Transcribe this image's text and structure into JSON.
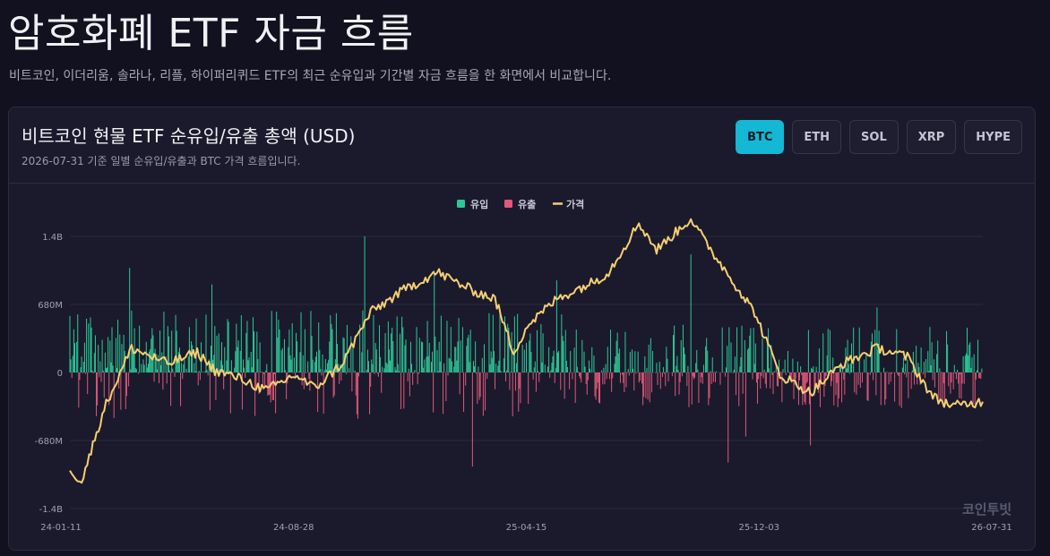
{
  "header": {
    "title": "암호화폐 ETF 자금 흐름",
    "subtitle": "비트코인, 이더리움, 솔라나, 리플, 하이퍼리퀴드 ETF의 최근 순유입과 기간별 자금 흐름을 한 화면에서 비교합니다."
  },
  "card": {
    "title": "비트코인 현물 ETF 순유입/유출 총액 (USD)",
    "subtitle": "2026-07-31 기준 일별 순유입/유출과 BTC 가격 흐름입니다.",
    "tabs": [
      {
        "label": "BTC",
        "active": true
      },
      {
        "label": "ETH",
        "active": false
      },
      {
        "label": "SOL",
        "active": false
      },
      {
        "label": "XRP",
        "active": false
      },
      {
        "label": "HYPE",
        "active": false
      }
    ],
    "watermark": "코인투빗"
  },
  "colors": {
    "inflow": "#2dc897",
    "outflow": "#e0587a",
    "price": "#f5cf73",
    "grid": "#2a2a3e",
    "axis_text": "#a0a0b0"
  },
  "chart_data": {
    "type": "bar",
    "legend": [
      "유입",
      "유출",
      "가격"
    ],
    "legend_position": "top-center",
    "y_ticks": [
      "1.4B",
      "680M",
      "0",
      "-680M",
      "-1.4B"
    ],
    "x_ticks": [
      "24-01-11",
      "24-08-28",
      "25-04-15",
      "25-12-03",
      "26-07-31"
    ],
    "ylim": [
      -1360000000,
      1360000000
    ],
    "grid": true,
    "x_range": [
      "2024-01-11",
      "2026-07-31"
    ],
    "bars_per_day": 1,
    "inflow_peaks": [
      {
        "date": "2024-03-12",
        "value": 1045000000
      },
      {
        "date": "2024-06-04",
        "value": 880000000
      },
      {
        "date": "2024-11-07",
        "value": 1360000000
      },
      {
        "date": "2025-01-17",
        "value": 1020000000
      },
      {
        "date": "2025-05-22",
        "value": 920000000
      },
      {
        "date": "2025-10-06",
        "value": 1180000000
      },
      {
        "date": "2026-04-14",
        "value": 650000000
      }
    ],
    "outflow_peaks": [
      {
        "date": "2025-02-25",
        "value": -940000000
      },
      {
        "date": "2025-11-13",
        "value": -900000000
      },
      {
        "date": "2025-12-01",
        "value": -640000000
      },
      {
        "date": "2026-02-05",
        "value": -730000000
      }
    ],
    "price_series": {
      "name": "가격",
      "x": [
        "2024-01-11",
        "2024-01-23",
        "2024-02-15",
        "2024-03-14",
        "2024-04-20",
        "2024-05-20",
        "2024-06-07",
        "2024-07-05",
        "2024-07-29",
        "2024-08-28",
        "2024-09-17",
        "2024-10-15",
        "2024-11-13",
        "2024-12-17",
        "2025-01-20",
        "2025-02-24",
        "2025-03-20",
        "2025-04-08",
        "2025-04-22",
        "2025-05-22",
        "2025-06-30",
        "2025-07-14",
        "2025-08-14",
        "2025-09-01",
        "2025-10-06",
        "2025-10-20",
        "2025-11-21",
        "2025-12-10",
        "2026-01-05",
        "2026-02-05",
        "2026-03-10",
        "2026-04-15",
        "2026-05-15",
        "2026-06-10",
        "2026-07-01",
        "2026-07-31"
      ],
      "y": [
        0.08,
        0.02,
        0.35,
        0.62,
        0.55,
        0.6,
        0.52,
        0.48,
        0.43,
        0.5,
        0.44,
        0.55,
        0.78,
        0.88,
        0.96,
        0.88,
        0.84,
        0.6,
        0.72,
        0.84,
        0.92,
        0.96,
        1.18,
        1.06,
        1.2,
        1.1,
        0.9,
        0.78,
        0.5,
        0.42,
        0.55,
        0.62,
        0.58,
        0.4,
        0.36,
        0.38
      ]
    }
  }
}
